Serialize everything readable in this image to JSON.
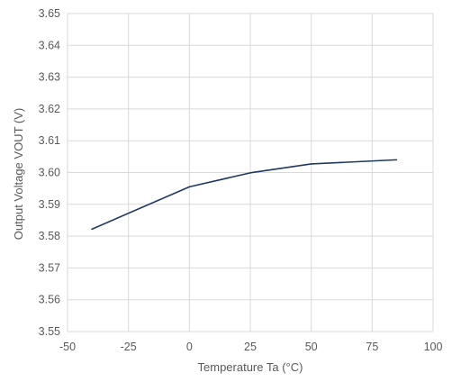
{
  "chart_data": {
    "type": "line",
    "title": "",
    "xlabel": "Temperature  Ta (°C)",
    "ylabel": "Output Voltage VOUT (V)",
    "xlim": [
      -50,
      100
    ],
    "ylim": [
      3.55,
      3.65
    ],
    "x_ticks": [
      -50,
      -25,
      0,
      25,
      50,
      75,
      100
    ],
    "y_ticks": [
      3.55,
      3.56,
      3.57,
      3.58,
      3.59,
      3.6,
      3.61,
      3.62,
      3.63,
      3.64,
      3.65
    ],
    "x_tick_labels": [
      "-50",
      "-25",
      "0",
      "25",
      "50",
      "75",
      "100"
    ],
    "y_tick_labels": [
      "3.55",
      "3.56",
      "3.57",
      "3.58",
      "3.59",
      "3.60",
      "3.61",
      "3.62",
      "3.63",
      "3.64",
      "3.65"
    ],
    "grid": true,
    "legend": "none",
    "series": [
      {
        "x": [
          -40,
          0,
          25,
          50,
          85
        ],
        "y": [
          3.5822,
          3.5955,
          3.5999,
          3.6027,
          3.604
        ],
        "color": "#1f3864"
      }
    ],
    "colors": {
      "grid": "#d9d9d9",
      "text": "#595959",
      "line": "#1f3864"
    }
  }
}
